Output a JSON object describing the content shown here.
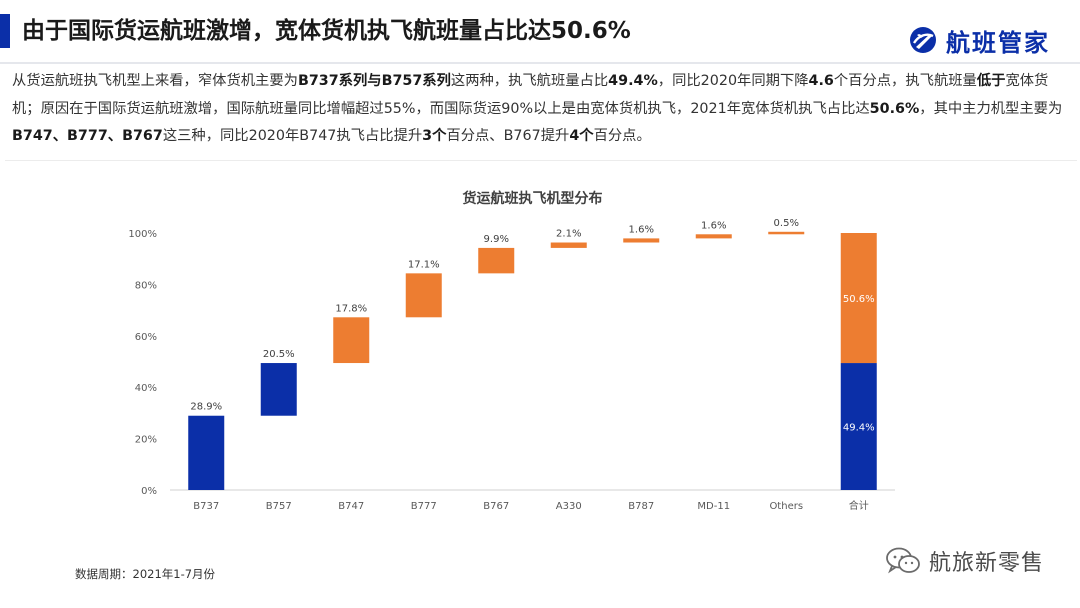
{
  "header": {
    "title": "由于国际货运航班激增，宽体货机执飞航班量占比达50.6%",
    "brand": "航班管家",
    "accent_color": "#0b2fa8"
  },
  "description": [
    {
      "text": "从货运航班执飞机型上来看，窄体货机主要为",
      "bold": false
    },
    {
      "text": "B737系列与B757系列",
      "bold": true
    },
    {
      "text": "这两种，执飞航班量占比",
      "bold": false
    },
    {
      "text": "49.4%",
      "bold": true
    },
    {
      "text": "，同比2020年同期下降",
      "bold": false
    },
    {
      "text": "4.6",
      "bold": true
    },
    {
      "text": "个百分点，执飞航班量",
      "bold": false
    },
    {
      "text": "低于",
      "bold": true
    },
    {
      "text": "宽体货机；原因在于国际货运航班激增，国际航班量同比增幅超过55%，而国际货运90%以上是由宽体货机执飞，2021年宽体货机执飞占比达",
      "bold": false
    },
    {
      "text": "50.6%",
      "bold": true
    },
    {
      "text": "，其中主力机型主要为",
      "bold": false
    },
    {
      "text": "B747、B777、B767",
      "bold": true
    },
    {
      "text": "这三种，同比2020年B747执飞占比提升",
      "bold": false
    },
    {
      "text": "3个",
      "bold": true
    },
    {
      "text": "百分点、B767提升",
      "bold": false
    },
    {
      "text": "4个",
      "bold": true
    },
    {
      "text": "百分点。",
      "bold": false
    }
  ],
  "chart_data": {
    "type": "bar",
    "subtype": "waterfall",
    "title": "货运航班执飞机型分布",
    "categories": [
      "B737",
      "B757",
      "B747",
      "B777",
      "B767",
      "A330",
      "B787",
      "MD-11",
      "Others",
      "合计"
    ],
    "values": [
      28.9,
      20.5,
      17.8,
      17.1,
      9.9,
      2.1,
      1.6,
      1.6,
      0.5,
      null
    ],
    "labels": [
      "28.9%",
      "20.5%",
      "17.8%",
      "17.1%",
      "9.9%",
      "2.1%",
      "1.6%",
      "1.6%",
      "0.5%",
      ""
    ],
    "bar_colors": [
      "#0b2fa8",
      "#0b2fa8",
      "#ed7d31",
      "#ed7d31",
      "#ed7d31",
      "#ed7d31",
      "#ed7d31",
      "#ed7d31",
      "#ed7d31",
      null
    ],
    "total": {
      "category": "合计",
      "segments": [
        {
          "value": 49.4,
          "label": "49.4%",
          "color": "#0b2fa8"
        },
        {
          "value": 50.6,
          "label": "50.6%",
          "color": "#ed7d31"
        }
      ]
    },
    "ylim": [
      0,
      100
    ],
    "yticks": [
      0,
      20,
      40,
      60,
      80,
      100
    ],
    "ytick_labels": [
      "0%",
      "20%",
      "40%",
      "60%",
      "80%",
      "100%"
    ],
    "grid": false,
    "legend": "none",
    "xlabel": "",
    "ylabel": ""
  },
  "footnote": "数据周期：2021年1-7月份",
  "watermark": "航旅新零售"
}
